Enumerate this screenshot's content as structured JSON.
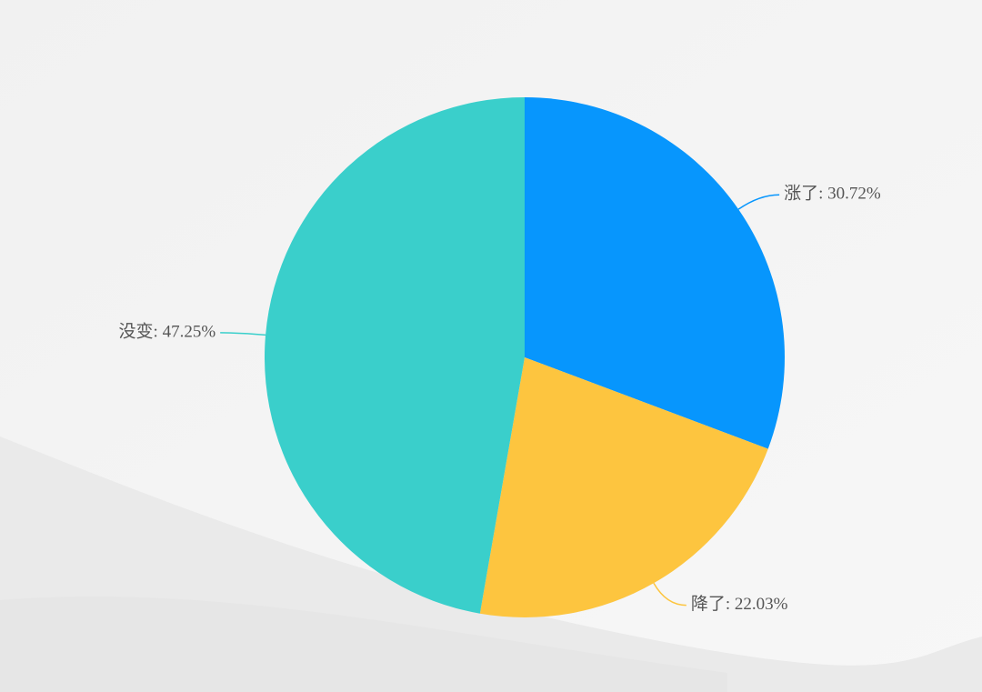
{
  "chart_data": {
    "type": "pie",
    "values": [
      30.72,
      22.03,
      47.25
    ],
    "value_labels": [
      "涨了: 30.72%",
      "降了: 22.03%",
      "没变: 47.25%"
    ],
    "colors": [
      "#0796fd",
      "#fdc53f",
      "#3acfcb"
    ]
  }
}
